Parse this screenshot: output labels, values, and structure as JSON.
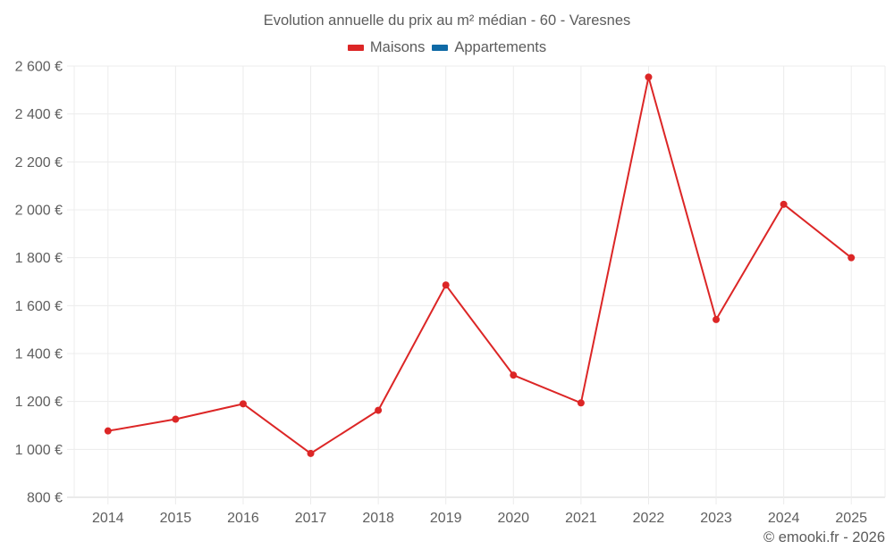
{
  "chart_data": {
    "type": "line",
    "title": "Evolution annuelle du prix au m² médian - 60 - Varesnes",
    "xlabel": "",
    "ylabel": "",
    "categories": [
      "2014",
      "2015",
      "2016",
      "2017",
      "2018",
      "2019",
      "2020",
      "2021",
      "2022",
      "2023",
      "2024",
      "2025"
    ],
    "series": [
      {
        "name": "Maisons",
        "color": "#dc2626",
        "values": [
          1077,
          1126,
          1190,
          983,
          1163,
          1686,
          1310,
          1194,
          2554,
          1542,
          2023,
          1800
        ]
      },
      {
        "name": "Appartements",
        "color": "#0f6aa6",
        "values": []
      }
    ],
    "ylim": [
      800,
      2600
    ],
    "yticks": [
      800,
      1000,
      1200,
      1400,
      1600,
      1800,
      2000,
      2200,
      2400,
      2600
    ],
    "ytick_labels": [
      "800 €",
      "1 000 €",
      "1 200 €",
      "1 400 €",
      "1 600 €",
      "1 800 €",
      "2 000 €",
      "2 200 €",
      "2 400 €",
      "2 600 €"
    ],
    "grid": true,
    "legend_position": "top-center"
  },
  "legend": {
    "items": [
      {
        "label": "Maisons",
        "color": "#dc2626"
      },
      {
        "label": "Appartements",
        "color": "#0f6aa6"
      }
    ]
  },
  "credit": "© emooki.fr - 2026"
}
